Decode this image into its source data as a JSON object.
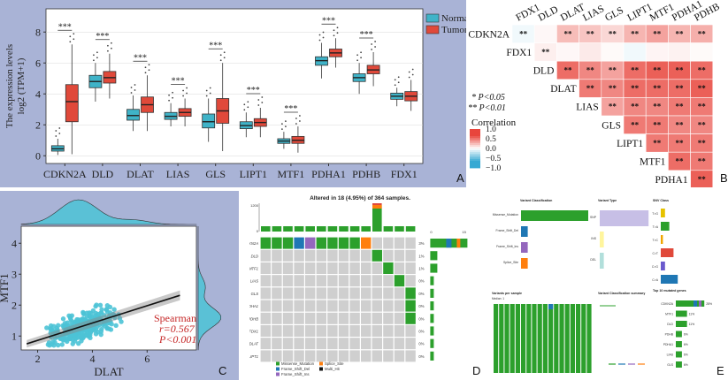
{
  "panel_labels": {
    "a": "A",
    "b": "B",
    "c": "C",
    "d": "D",
    "e": "E"
  },
  "colors": {
    "normal": "#3fb3c8",
    "tumor": "#e0493a",
    "panel_bg": "#a9b3d6",
    "scatter": "#4cc3d6",
    "heat_high": "#e8453c",
    "heat_low": "#36a9d3",
    "oncoprint_grey": "#cfcfcf",
    "missense": "#2ca02c",
    "frame_del": "#1f77b4",
    "frame_ins": "#9467bd",
    "splice": "#ff7f0e",
    "multi": "#111111"
  },
  "chart_data": [
    {
      "id": "A",
      "type": "boxplot",
      "ylabel_line1": "The expression levels",
      "ylabel_line2": "log2 (TPM+1)",
      "ylim": [
        -0.5,
        9.5
      ],
      "yticks": [
        0,
        2,
        4,
        6,
        8
      ],
      "legend": {
        "placement": "top-right",
        "entries": [
          "Normal",
          "Tumor"
        ]
      },
      "series": [
        {
          "name": "Normal",
          "boxes": [
            {
              "q1": 0.3,
              "med": 0.45,
              "q3": 0.65,
              "lo": 0.05,
              "hi": 1.1
            },
            {
              "q1": 4.4,
              "med": 4.8,
              "q3": 5.2,
              "lo": 3.5,
              "hi": 6.0
            },
            {
              "q1": 2.3,
              "med": 2.6,
              "q3": 3.0,
              "lo": 1.6,
              "hi": 3.9
            },
            {
              "q1": 2.35,
              "med": 2.55,
              "q3": 2.8,
              "lo": 1.9,
              "hi": 3.4
            },
            {
              "q1": 1.8,
              "med": 2.2,
              "q3": 2.7,
              "lo": 0.9,
              "hi": 3.7
            },
            {
              "q1": 1.75,
              "med": 1.95,
              "q3": 2.2,
              "lo": 1.2,
              "hi": 2.8
            },
            {
              "q1": 0.8,
              "med": 0.95,
              "q3": 1.1,
              "lo": 0.45,
              "hi": 1.55
            },
            {
              "q1": 5.85,
              "med": 6.15,
              "q3": 6.4,
              "lo": 5.0,
              "hi": 7.3
            },
            {
              "q1": 4.8,
              "med": 5.05,
              "q3": 5.3,
              "lo": 4.0,
              "hi": 6.0
            },
            {
              "q1": 3.65,
              "med": 3.85,
              "q3": 4.05,
              "lo": 3.2,
              "hi": 4.4
            }
          ]
        },
        {
          "name": "Tumor",
          "boxes": [
            {
              "q1": 2.2,
              "med": 3.5,
              "q3": 4.6,
              "lo": 0.1,
              "hi": 7.2
            },
            {
              "q1": 4.7,
              "med": 5.05,
              "q3": 5.45,
              "lo": 3.7,
              "hi": 6.6
            },
            {
              "q1": 2.8,
              "med": 3.3,
              "q3": 3.8,
              "lo": 1.6,
              "hi": 5.2
            },
            {
              "q1": 2.55,
              "med": 2.8,
              "q3": 3.05,
              "lo": 1.9,
              "hi": 3.7
            },
            {
              "q1": 2.1,
              "med": 2.9,
              "q3": 3.7,
              "lo": 0.3,
              "hi": 6.0
            },
            {
              "q1": 1.9,
              "med": 2.15,
              "q3": 2.4,
              "lo": 1.2,
              "hi": 3.1
            },
            {
              "q1": 0.8,
              "med": 1.0,
              "q3": 1.25,
              "lo": 0.2,
              "hi": 1.9
            },
            {
              "q1": 6.4,
              "med": 6.65,
              "q3": 6.9,
              "lo": 5.7,
              "hi": 7.6
            },
            {
              "q1": 5.3,
              "med": 5.55,
              "q3": 5.85,
              "lo": 4.5,
              "hi": 6.7
            },
            {
              "q1": 3.55,
              "med": 3.85,
              "q3": 4.15,
              "lo": 2.9,
              "hi": 4.9
            }
          ]
        }
      ],
      "categories": [
        "CDKN2A",
        "DLD",
        "DLAT",
        "LIAS",
        "GLS",
        "LIPT1",
        "MTF1",
        "PDHA1",
        "PDHB",
        "FDX1"
      ],
      "significance": [
        "***",
        "***",
        "***",
        "***",
        "***",
        "***",
        "***",
        "***",
        "***",
        ""
      ]
    },
    {
      "id": "B",
      "type": "heatmap",
      "genes": [
        "CDKN2A",
        "FDX1",
        "DLD",
        "DLAT",
        "LIAS",
        "GLS",
        "LIPT1",
        "MTF1",
        "PDHA1",
        "PDHB"
      ],
      "col_labels": [
        "FDX1",
        "DLD",
        "DLAT",
        "LIAS",
        "GLS",
        "LIPT1",
        "MTF1",
        "PDHA1",
        "PDHB"
      ],
      "rows": [
        [
          -0.05,
          0.03,
          0.25,
          0.22,
          0.15,
          0.28,
          0.35,
          0.28,
          0.3
        ],
        [
          null,
          0.06,
          0.03,
          0.08,
          0.02,
          -0.05,
          0.04,
          0.05,
          0.02
        ],
        [
          null,
          null,
          0.55,
          0.45,
          0.35,
          0.55,
          0.6,
          0.6,
          0.55
        ],
        [
          null,
          null,
          null,
          0.5,
          0.45,
          0.55,
          0.55,
          0.55,
          0.6
        ],
        [
          null,
          null,
          null,
          null,
          0.35,
          0.45,
          0.45,
          0.5,
          0.5
        ],
        [
          null,
          null,
          null,
          null,
          null,
          0.5,
          0.5,
          0.45,
          0.45
        ],
        [
          null,
          null,
          null,
          null,
          null,
          null,
          0.5,
          0.5,
          0.5
        ],
        [
          null,
          null,
          null,
          null,
          null,
          null,
          null,
          0.55,
          0.5
        ],
        [
          null,
          null,
          null,
          null,
          null,
          null,
          null,
          null,
          0.6
        ]
      ],
      "sig": [
        [
          "**",
          "",
          "**",
          "**",
          "**",
          "**",
          "**",
          "**",
          "**"
        ],
        [
          "",
          "**",
          "",
          "",
          "",
          "",
          "",
          "",
          ""
        ],
        [
          "",
          "",
          "**",
          "**",
          "**",
          "**",
          "**",
          "**",
          "**"
        ],
        [
          "",
          "",
          "",
          "**",
          "**",
          "**",
          "**",
          "**",
          "**"
        ],
        [
          "",
          "",
          "",
          "",
          "**",
          "**",
          "**",
          "**",
          "**"
        ],
        [
          "",
          "",
          "",
          "",
          "",
          "**",
          "**",
          "**",
          "**"
        ],
        [
          "",
          "",
          "",
          "",
          "",
          "",
          "**",
          "**",
          "**"
        ],
        [
          "",
          "",
          "",
          "",
          "",
          "",
          "",
          "**",
          "**"
        ],
        [
          "",
          "",
          "",
          "",
          "",
          "",
          "",
          "",
          "**"
        ]
      ],
      "note1": "* P<0.05",
      "note2": "** P<0.01",
      "legend_title": "Correlation",
      "legend_ticks": [
        "1.0",
        "0.5",
        "0.0",
        "−0.5",
        "−1.0"
      ]
    },
    {
      "id": "C",
      "type": "scatter",
      "xlabel": "DLAT",
      "ylabel": "MTF1",
      "xticks": [
        2,
        4,
        6
      ],
      "yticks": [
        1,
        2,
        3,
        4
      ],
      "xlim": [
        1.4,
        7.8
      ],
      "ylim": [
        0.55,
        4.55
      ],
      "fit": {
        "intercept": 0.3,
        "slope": 0.28
      },
      "stats_line1": "Spearman",
      "stats_line2": "r=0.567",
      "stats_line3": "P<0.001"
    },
    {
      "id": "D",
      "type": "oncoplot",
      "title": "Altered in 18 (4.95%) of 364 samples.",
      "top_axis_ticks": [
        "1200",
        "0"
      ],
      "right_axis_ticks": [
        "0",
        "15"
      ],
      "genes": [
        "CDKN2A",
        "DLD",
        "MTF1",
        "LIAS",
        "GLS",
        "PDHA1",
        "PDHB",
        "FDX1",
        "DLAT",
        "LIPT1"
      ],
      "percents": [
        "3%",
        "1%",
        "1%",
        "0%",
        "0%",
        "0%",
        "0%",
        "0%",
        "0%",
        "0%"
      ],
      "legend": [
        "Missense_Mutation",
        "Splice_Site",
        "Frame_Shift_Del",
        "Multi_Hit",
        "Frame_Shift_Ins"
      ]
    },
    {
      "id": "E",
      "type": "maf_summary",
      "titles": [
        "Variant Classification",
        "Variant Type",
        "SNV Class",
        "Variants per sample",
        "Variant Classification summary",
        "Top 10 mutated genes"
      ],
      "subtitle": "Median: 1",
      "vc_labels": [
        "Missense_Mutation",
        "Frame_Shift_Del",
        "Frame_Shift_Ins",
        "Splice_Site"
      ],
      "vc_values": [
        10,
        1,
        1,
        1
      ],
      "vt_labels": [
        "SNP",
        "INS",
        "DEL"
      ],
      "vt_values": [
        12,
        1,
        1
      ],
      "snv_labels": [
        "T>G",
        "T>A",
        "T>C",
        "C>T",
        "C>G",
        "C>A"
      ],
      "snv_values": [
        2,
        4,
        1,
        6,
        2,
        8
      ],
      "genes": [
        "CDKN2A",
        "MTF1",
        "DLD",
        "PDHB",
        "PDHA1",
        "LIAS",
        "GLS"
      ],
      "gene_pcts": [
        "28%",
        "11%",
        "11%",
        "6%",
        "6%",
        "6%",
        "6%"
      ],
      "gene_values": [
        28,
        11,
        11,
        6,
        6,
        6,
        6
      ]
    }
  ]
}
